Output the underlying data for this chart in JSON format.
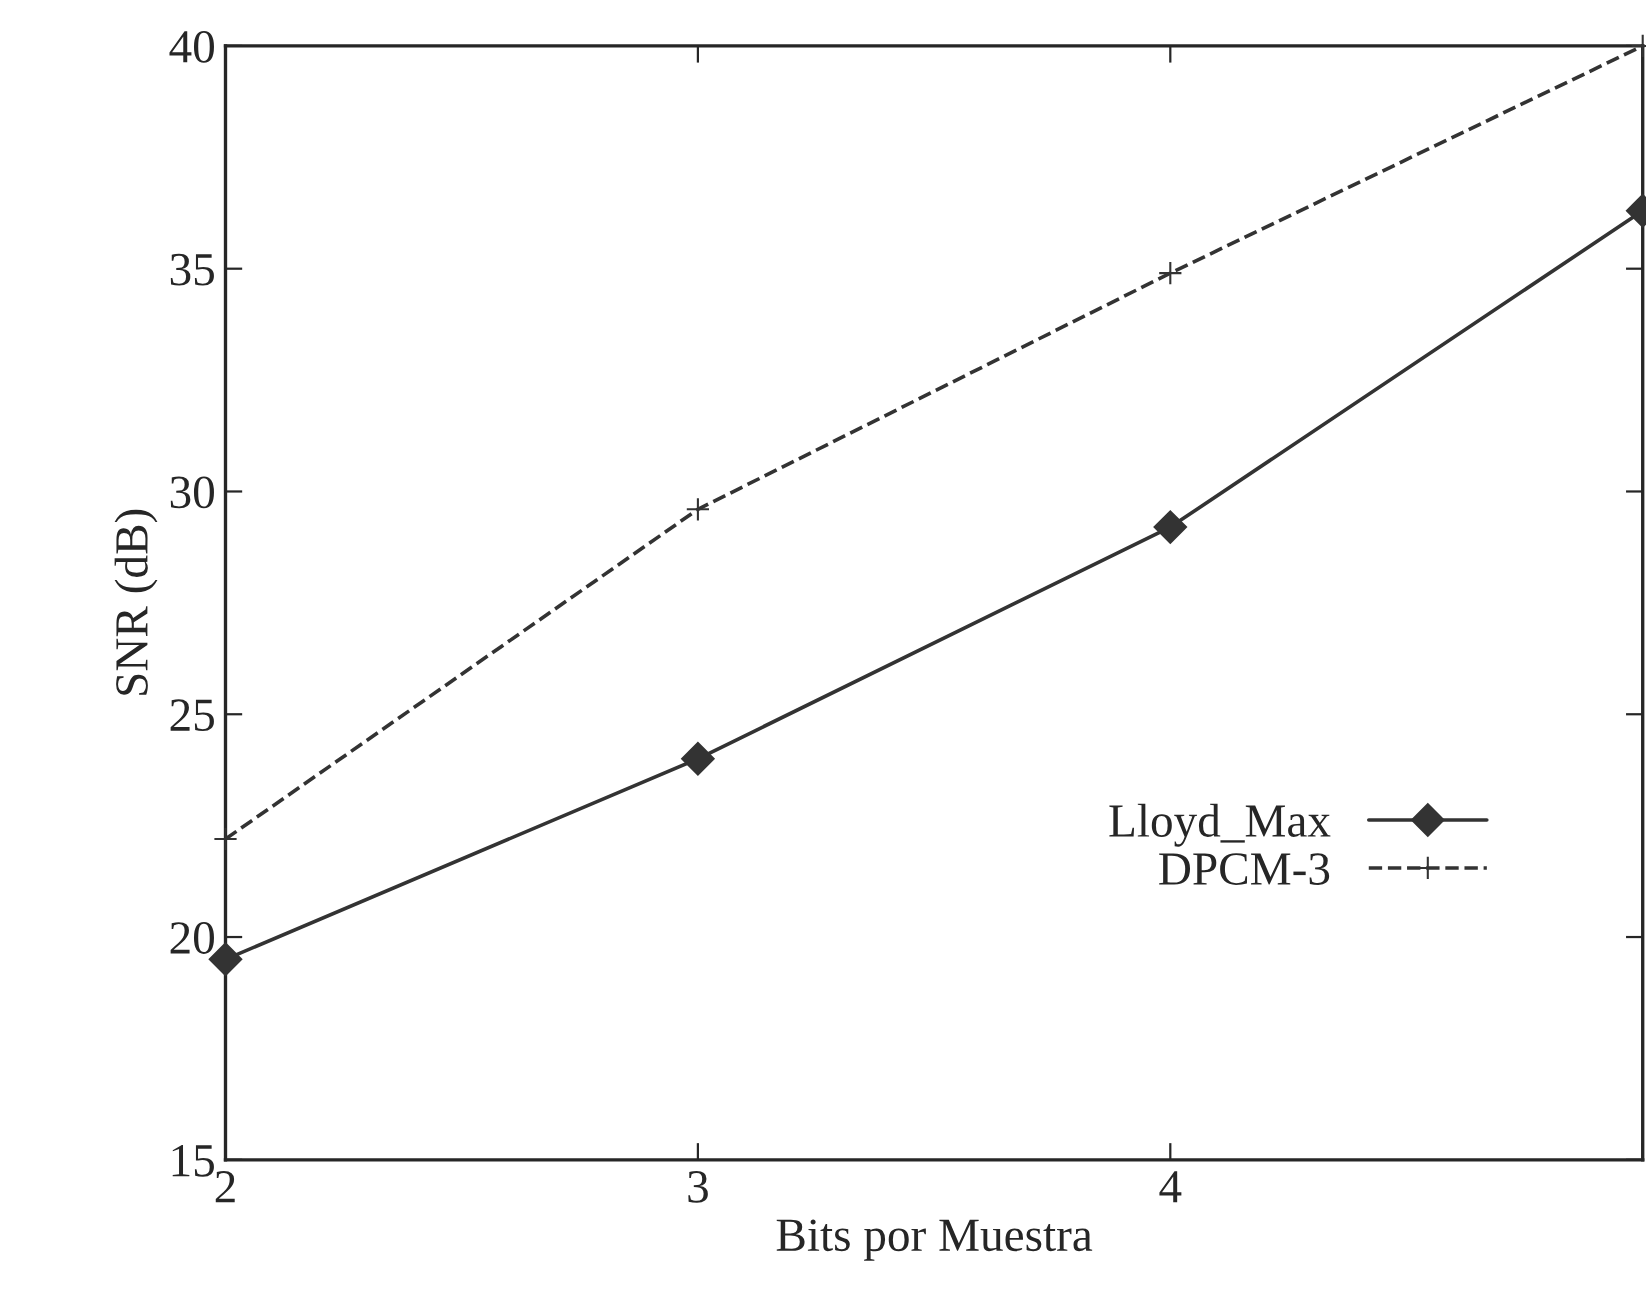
{
  "chart_data": {
    "type": "line",
    "xlabel": "Bits por Muestra",
    "ylabel": "SNR (dB)",
    "x": [
      2,
      3,
      4,
      5
    ],
    "series": [
      {
        "name": "Lloyd_Max",
        "color": "#333333",
        "values": [
          19.5,
          24,
          29.2,
          36.3
        ],
        "marker": "diamond",
        "line_style": "solid"
      },
      {
        "name": "DPCM-3",
        "color": "#333333",
        "values": [
          22.2,
          29.6,
          34.9,
          40
        ],
        "marker": "cross",
        "line_style": "dashed"
      }
    ],
    "xlim": [
      2,
      5
    ],
    "xticks": [
      2,
      3,
      4,
      {
        "value": 5,
        "label": null
      }
    ],
    "ylim": [
      15,
      40
    ],
    "yticks": [
      15,
      20,
      25,
      30,
      35,
      40
    ],
    "grid": false,
    "legend": "bottom right"
  }
}
